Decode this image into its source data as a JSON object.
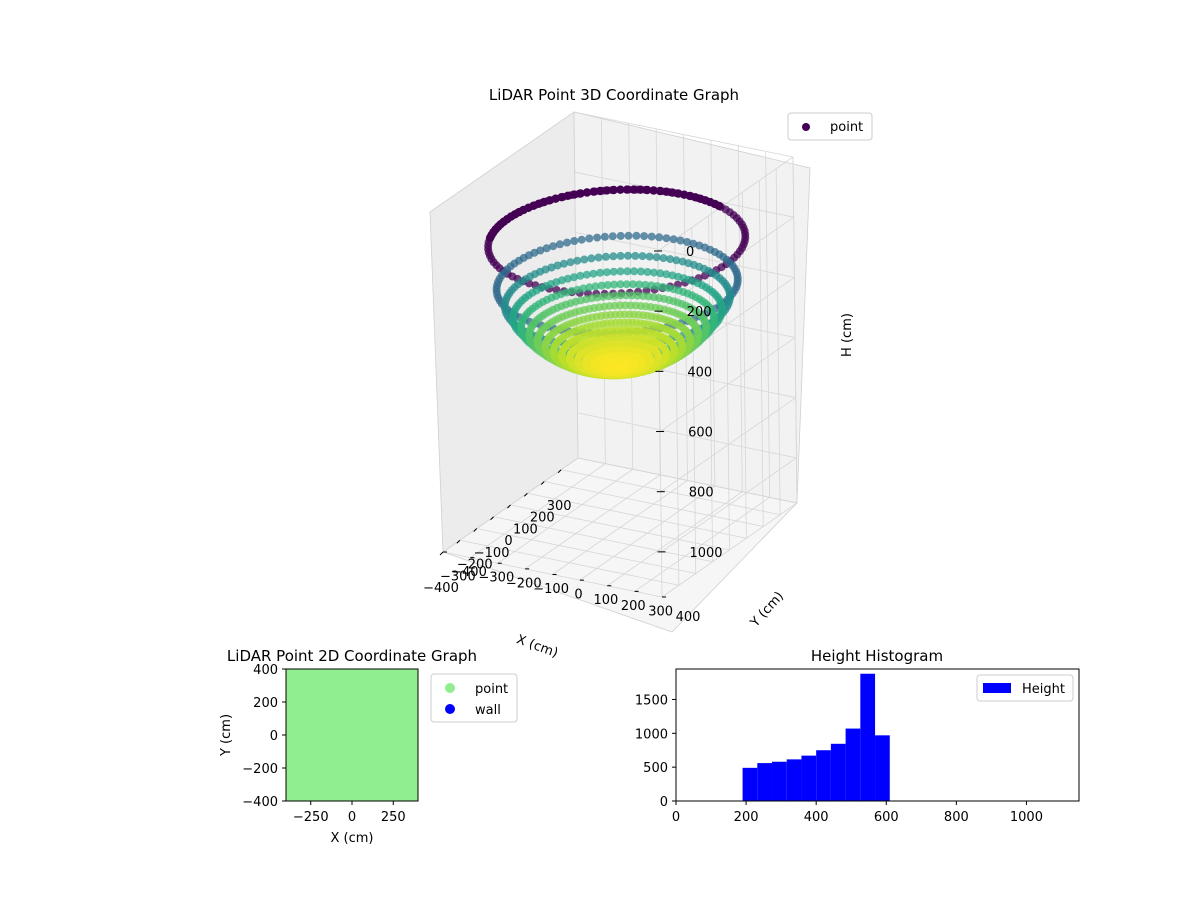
{
  "chart_data": [
    {
      "type": "scatter3d",
      "title": "LiDAR Point 3D Coordinate Graph",
      "xlabel": "X (cm)",
      "ylabel": "Y (cm)",
      "zlabel": "H (cm)",
      "xlim": [
        -400,
        400
      ],
      "ylim": [
        -400,
        400
      ],
      "zlim": [
        1150,
        0
      ],
      "xticks": [
        "−400",
        "−300",
        "−200",
        "−100",
        "0",
        "100",
        "200",
        "300"
      ],
      "yticks": [
        "−400",
        "−300",
        "−200",
        "−100",
        "0",
        "100",
        "200",
        "300",
        "400"
      ],
      "zticks": [
        "0",
        "200",
        "400",
        "600",
        "800",
        "1000"
      ],
      "surface": {
        "shape": "hemispherical bowl",
        "rim_radius": 400,
        "rim_height": 200,
        "bottom_height": 610,
        "colormap": "viridis"
      },
      "legend": {
        "placement": "top-right",
        "entries": [
          {
            "label": "point",
            "color": "#440154"
          }
        ]
      },
      "grid": true
    },
    {
      "type": "scatter",
      "title": "LiDAR Point 2D Coordinate Graph",
      "xlabel": "X (cm)",
      "ylabel": "Y (cm)",
      "xlim": [
        -400,
        400
      ],
      "ylim": [
        -400,
        400
      ],
      "xticks": [
        "−250",
        "0",
        "250"
      ],
      "yticks": [
        "400",
        "200",
        "0",
        "−200",
        "−400"
      ],
      "fill_color": "#90ee90",
      "legend": {
        "placement": "outside-right",
        "entries": [
          {
            "label": "point",
            "color": "#90ee90"
          },
          {
            "label": "wall",
            "color": "#0000ff"
          }
        ]
      }
    },
    {
      "type": "bar",
      "title": "Height Histogram",
      "bins": [
        {
          "start": 190,
          "end": 232,
          "count": 490
        },
        {
          "start": 232,
          "end": 274,
          "count": 560
        },
        {
          "start": 274,
          "end": 316,
          "count": 580
        },
        {
          "start": 316,
          "end": 358,
          "count": 615
        },
        {
          "start": 358,
          "end": 400,
          "count": 670
        },
        {
          "start": 400,
          "end": 442,
          "count": 750
        },
        {
          "start": 442,
          "end": 484,
          "count": 845
        },
        {
          "start": 484,
          "end": 526,
          "count": 1070
        },
        {
          "start": 526,
          "end": 568,
          "count": 1880
        },
        {
          "start": 568,
          "end": 610,
          "count": 970
        }
      ],
      "xlim": [
        0,
        1150
      ],
      "ylim": [
        0,
        1950
      ],
      "xticks": [
        0,
        200,
        400,
        600,
        800,
        1000
      ],
      "yticks": [
        0,
        500,
        1000,
        1500
      ],
      "bar_color": "#0000ff",
      "legend": {
        "placement": "top-right",
        "entries": [
          {
            "label": "Height",
            "color": "#0000ff"
          }
        ]
      }
    }
  ]
}
